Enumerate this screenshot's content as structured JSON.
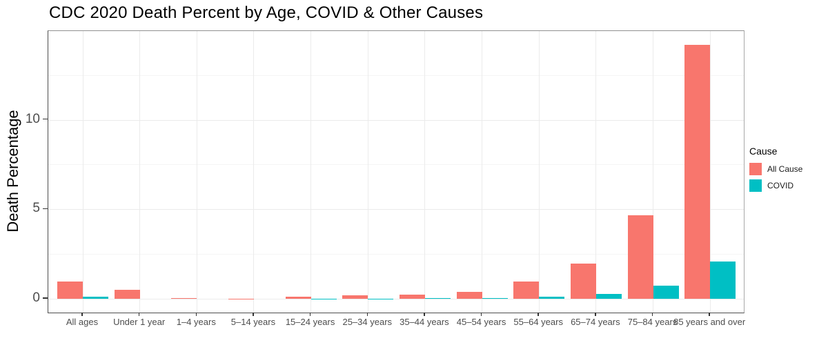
{
  "title": "CDC 2020 Death Percent by Age, COVID & Other Causes",
  "axes": {
    "y_title": "Death Percentage",
    "y_tick_labels": [
      "0",
      "5",
      "10"
    ],
    "x_title": ""
  },
  "legend": {
    "title": "Cause",
    "items": [
      {
        "label": "All Cause",
        "color": "#F8766D"
      },
      {
        "label": "COVID",
        "color": "#00BFC4"
      }
    ]
  },
  "chart_data": {
    "type": "bar",
    "grouping": "dodged",
    "title": "CDC 2020 Death Percent by Age, COVID & Other Causes",
    "xlabel": "",
    "ylabel": "Death Percentage",
    "ylim": [
      -0.77,
      14.92
    ],
    "y_major_ticks": [
      0,
      5,
      10
    ],
    "y_minor_gridlines": [
      2.5,
      7.5,
      12.5
    ],
    "grid": true,
    "legend_position": "right",
    "legend_title": "Cause",
    "categories": [
      "All ages",
      "Under 1 year",
      "1–4 years",
      "5–14 years",
      "15–24 years",
      "25–34 years",
      "35–44 years",
      "45–54 years",
      "55–64 years",
      "65–74 years",
      "75–84 years",
      "85 years and over"
    ],
    "series": [
      {
        "name": "All Cause",
        "color": "#F8766D",
        "values": [
          0.95,
          0.5,
          0.02,
          0.01,
          0.1,
          0.18,
          0.25,
          0.4,
          0.95,
          1.95,
          4.65,
          14.2
        ]
      },
      {
        "name": "COVID",
        "color": "#00BFC4",
        "values": [
          0.12,
          0,
          0,
          0,
          0.005,
          0.01,
          0.02,
          0.05,
          0.1,
          0.27,
          0.72,
          2.1
        ]
      }
    ]
  },
  "colors": {
    "all_cause": "#F8766D",
    "covid": "#00BFC4",
    "grid_major": "#ebebeb",
    "grid_minor": "#f5f5f5",
    "tick_label": "#4d4d4d",
    "background": "#ffffff"
  }
}
